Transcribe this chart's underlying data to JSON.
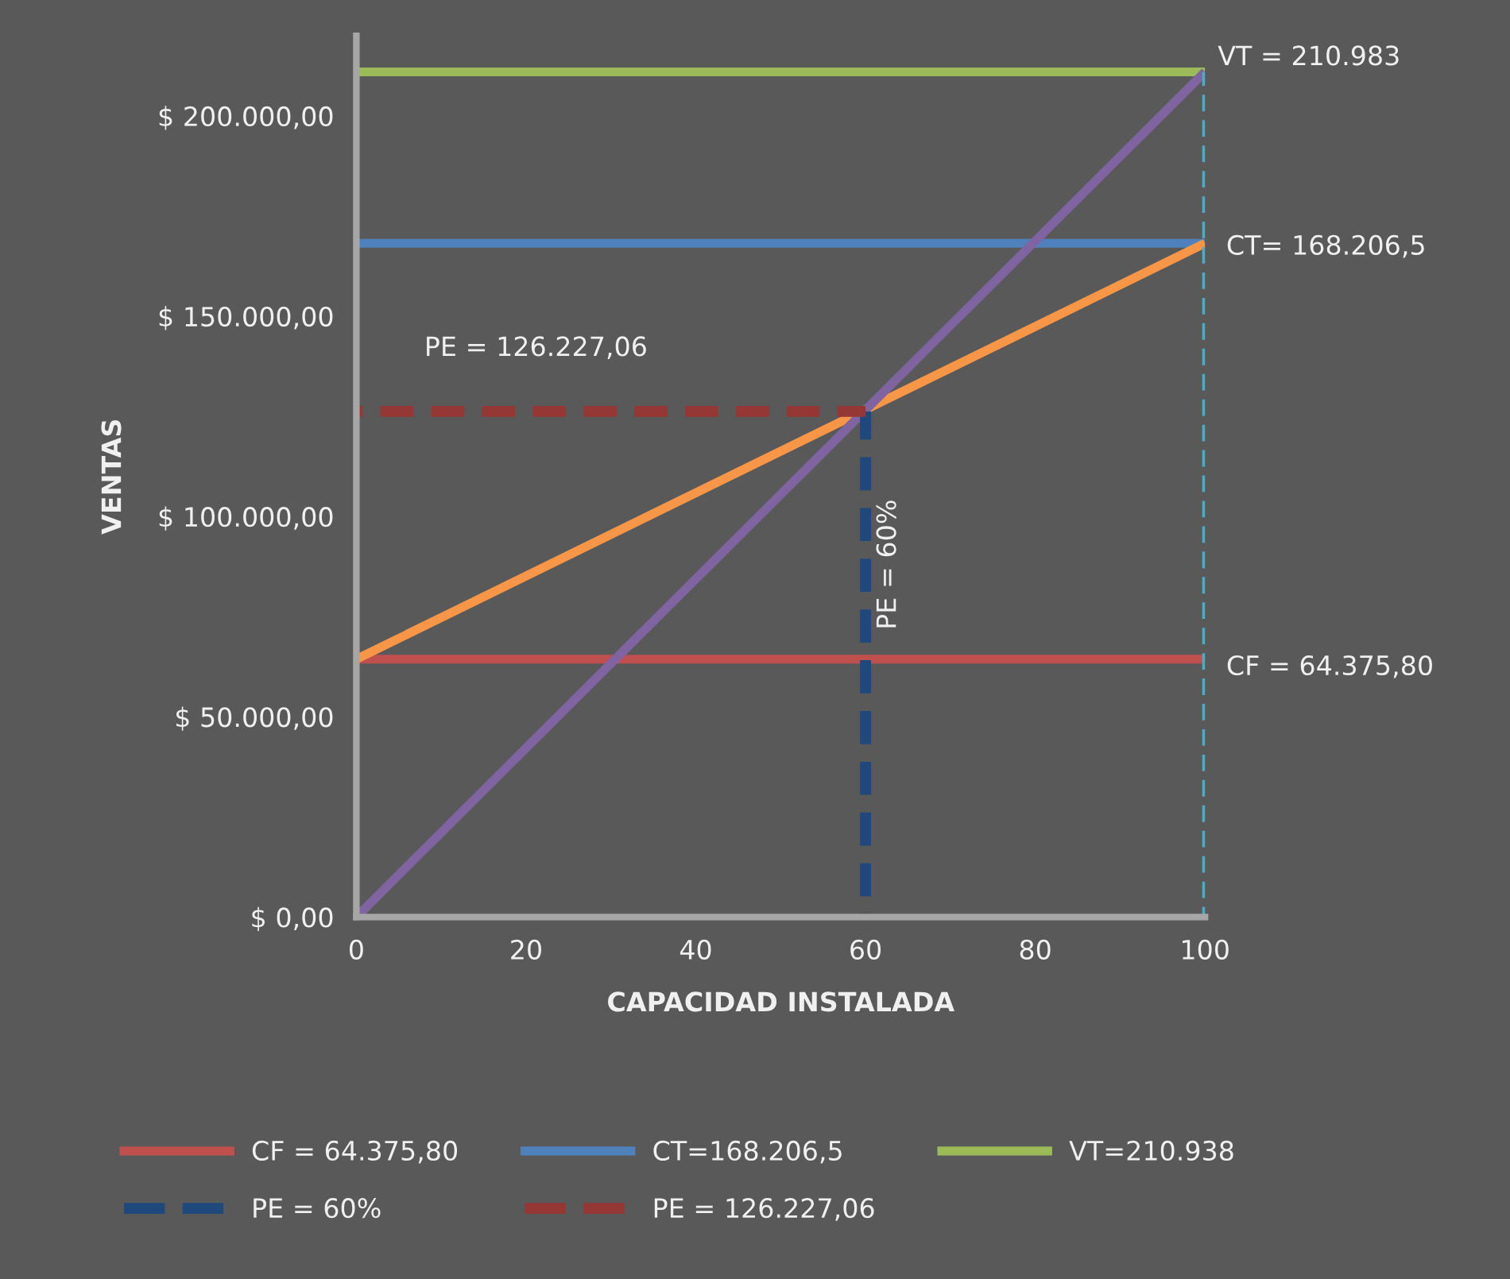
{
  "chart_data": {
    "type": "line",
    "xlabel": "CAPACIDAD INSTALADA",
    "ylabel": "VENTAS",
    "xlim": [
      0,
      100
    ],
    "xticks": [
      0,
      20,
      40,
      60,
      80,
      100
    ],
    "ylim": [
      0,
      220000
    ],
    "yticks": [
      {
        "value": 0,
        "label": "$ 0,00"
      },
      {
        "value": 50000,
        "label": "$ 50.000,00"
      },
      {
        "value": 100000,
        "label": "$ 100.000,00"
      },
      {
        "value": 150000,
        "label": "$ 150.000,00"
      },
      {
        "value": 200000,
        "label": "$ 200.000,00"
      }
    ],
    "grid": false,
    "legend": "bottom",
    "marker": "none",
    "series": [
      {
        "name": "CF = 64.375,80",
        "color": "#c0504d",
        "x": [
          0,
          100
        ],
        "values": [
          64375.8,
          64375.8
        ]
      },
      {
        "name": "CT=168.206,5",
        "color": "#4f81bd",
        "x": [
          0,
          100
        ],
        "values": [
          168206.5,
          168206.5
        ]
      },
      {
        "name": "VT=210.938",
        "color": "#9bbb59",
        "x": [
          0,
          100
        ],
        "values": [
          210983,
          210983
        ]
      },
      {
        "color": "#f79646",
        "x": [
          0,
          100
        ],
        "values": [
          64375.8,
          168206.5
        ]
      },
      {
        "color": "#8064a2",
        "x": [
          0,
          100
        ],
        "values": [
          0,
          210983
        ]
      },
      {
        "color": "#4bacc6",
        "x": [
          100,
          100
        ],
        "values": [
          0,
          210983
        ],
        "line_style": "dashed"
      },
      {
        "name": "PE = 60%",
        "color": "#1f497d",
        "x": [
          60,
          60
        ],
        "values": [
          0,
          126227.06
        ],
        "line_style": "dashed"
      },
      {
        "name": "PE = 126.227,06",
        "color": "#953735",
        "x": [
          0,
          60
        ],
        "values": [
          126227.06,
          126227.06
        ],
        "line_style": "dashed"
      }
    ],
    "annotations": [
      "VT = 210.983",
      "CT= 168.206,5",
      "CF = 64.375,80",
      "PE = 126.227,06",
      "PE = 60%"
    ]
  }
}
